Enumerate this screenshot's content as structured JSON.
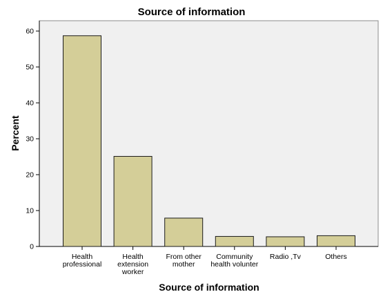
{
  "chart_data": {
    "type": "bar",
    "title": "Source of information",
    "xlabel": "Source of information",
    "ylabel": "Percent",
    "categories": [
      [
        "Health",
        "professional"
      ],
      [
        "Health",
        "extension",
        "worker"
      ],
      [
        "From other",
        "mother"
      ],
      [
        "Community",
        "health volunter"
      ],
      [
        "Radio ,Tv"
      ],
      [
        "Others"
      ]
    ],
    "values": [
      58.7,
      25.1,
      7.9,
      2.8,
      2.7,
      3.0
    ],
    "ylim": [
      0,
      64
    ],
    "yticks": [
      0,
      10,
      20,
      30,
      40,
      50,
      60
    ],
    "grid": false,
    "legend": "none",
    "colors": {
      "bar_fill": "#d4ce98",
      "bar_stroke": "#1a1a1a",
      "plot_background": "#f0f0f0",
      "frame": "#8c8c8c"
    }
  }
}
